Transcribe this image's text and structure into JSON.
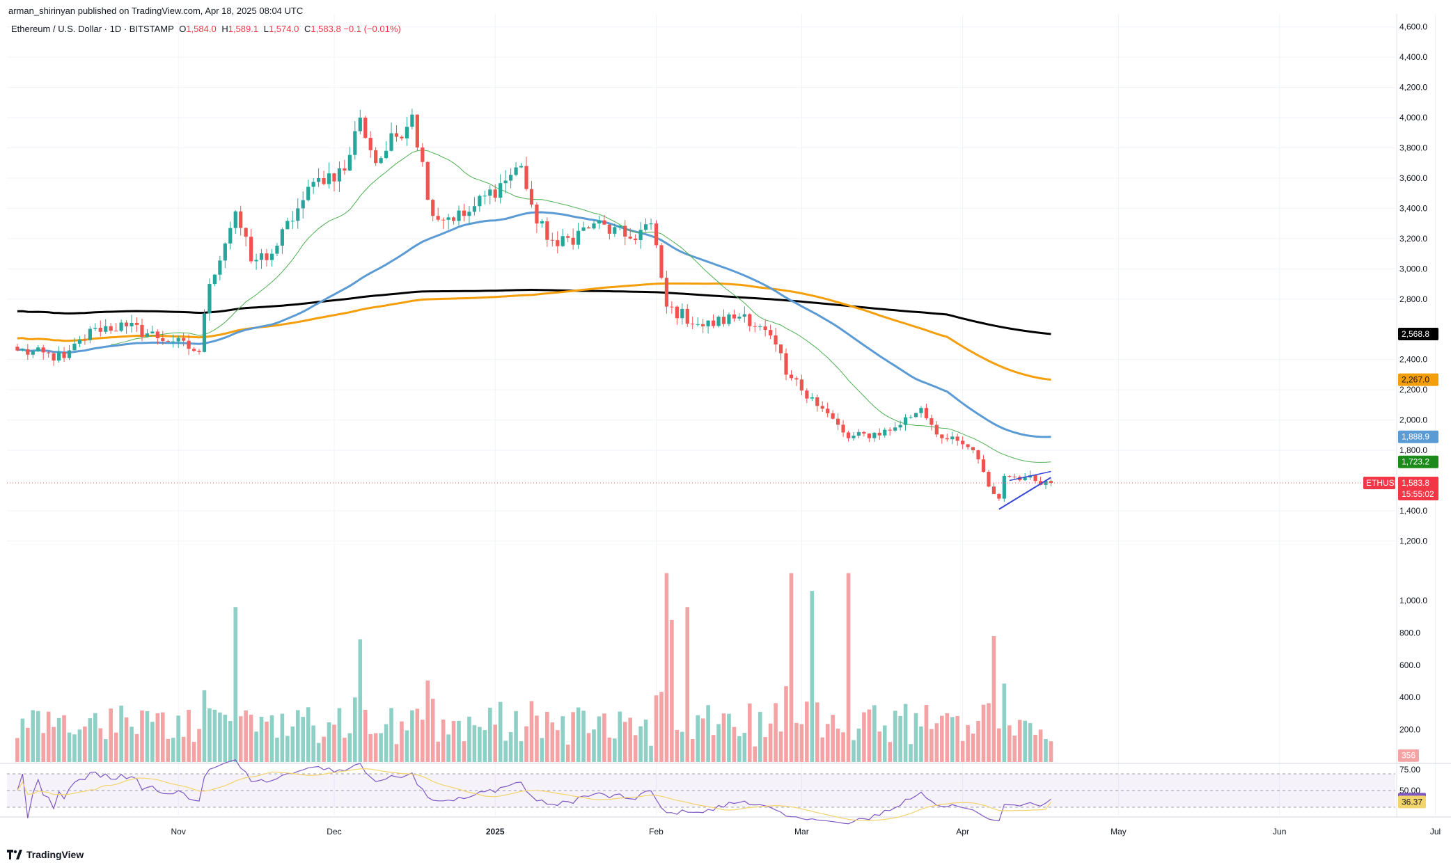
{
  "header": {
    "published": "arman_shirinyan published on TradingView.com, Apr 18, 2025 08:04 UTC",
    "symbol": "Ethereum / U.S. Dollar · 1D · BITSTAMP",
    "o_label": "O",
    "o_value": "1,584.0",
    "h_label": "H",
    "h_value": "1,589.1",
    "l_label": "L",
    "l_value": "1,574.0",
    "c_label": "C",
    "c_value": "1,583.8",
    "change": "−0.1 (−0.01%)"
  },
  "brand": {
    "name": "TradingView"
  },
  "colors": {
    "up": "#26a69a",
    "down": "#ef5350",
    "vol_up": "#8fd0c6",
    "vol_down": "#f4a3a5",
    "sma200": "#000000",
    "sma100": "#f59e0b",
    "sma50": "#5b9bd5",
    "sma20": "#4caf50",
    "rsi": "#7e57c2",
    "rsi_ma": "#f3d36b",
    "trend": "#3547d6"
  },
  "chart_data": {
    "type": "candlestick",
    "symbol": "ETHUSD",
    "timeframe": "1D",
    "y_axis_price": {
      "ticks": [
        "4,600.0",
        "4,400.0",
        "4,200.0",
        "4,000.0",
        "3,800.0",
        "3,600.0",
        "3,400.0",
        "3,200.0",
        "3,000.0",
        "2,800.0",
        "2,400.0",
        "2,200.0",
        "2,000.0",
        "1,800.0",
        "1,400.0",
        "1,200.0"
      ],
      "range": [
        1050,
        4640
      ]
    },
    "y_axis_volume": {
      "ticks": [
        "1,000.0",
        "800.0",
        "600.0",
        "400.0",
        "200.0"
      ]
    },
    "y_axis_rsi": {
      "ticks": [
        "75.00",
        "50.00"
      ],
      "range": [
        20,
        80
      ]
    },
    "x_axis": {
      "ticks": [
        "Nov",
        "Dec",
        "2025",
        "Feb",
        "Mar",
        "Apr",
        "May",
        "Jun",
        "Jul"
      ]
    },
    "price_badges": [
      {
        "label": "2,568.8",
        "value": 2568.8,
        "color": "#000000",
        "text_color": "#ffffff"
      },
      {
        "label": "2,267.0",
        "value": 2267.0,
        "color": "#f59e0b",
        "text_color": "#131722"
      },
      {
        "label": "1,888.9",
        "value": 1888.9,
        "color": "#5b9bd5",
        "text_color": "#ffffff"
      },
      {
        "label": "1,723.2",
        "value": 1723.2,
        "color": "#1b8a1b",
        "text_color": "#ffffff"
      }
    ],
    "last_price": {
      "symbol": "ETHUSD",
      "price": "1,583.8",
      "countdown": "15:55:02",
      "value": 1583.8
    },
    "volume_badge": "356",
    "rsi_badges": [
      {
        "label": "39.73",
        "value": 39.73,
        "color": "#7e57c2"
      },
      {
        "label": "36.37",
        "value": 36.37,
        "color": "#f3d36b"
      }
    ],
    "anchors": [
      {
        "date": "2024-10-01",
        "close": 2460
      },
      {
        "date": "2024-10-10",
        "close": 2410
      },
      {
        "date": "2024-10-16",
        "close": 2610
      },
      {
        "date": "2024-10-22",
        "close": 2620
      },
      {
        "date": "2024-10-31",
        "close": 2520
      },
      {
        "date": "2024-11-05",
        "close": 2450
      },
      {
        "date": "2024-11-07",
        "close": 2900
      },
      {
        "date": "2024-11-12",
        "close": 3380
      },
      {
        "date": "2024-11-15",
        "close": 3050
      },
      {
        "date": "2024-11-19",
        "close": 3100
      },
      {
        "date": "2024-11-24",
        "close": 3400
      },
      {
        "date": "2024-11-28",
        "close": 3600
      },
      {
        "date": "2024-12-03",
        "close": 3650
      },
      {
        "date": "2024-12-06",
        "close": 4000
      },
      {
        "date": "2024-12-09",
        "close": 3700
      },
      {
        "date": "2024-12-16",
        "close": 4020
      },
      {
        "date": "2024-12-20",
        "close": 3350
      },
      {
        "date": "2024-12-26",
        "close": 3350
      },
      {
        "date": "2025-01-06",
        "close": 3680
      },
      {
        "date": "2025-01-09",
        "close": 3300
      },
      {
        "date": "2025-01-13",
        "close": 3150
      },
      {
        "date": "2025-01-20",
        "close": 3300
      },
      {
        "date": "2025-01-27",
        "close": 3200
      },
      {
        "date": "2025-01-31",
        "close": 3300
      },
      {
        "date": "2025-02-03",
        "close": 2750
      },
      {
        "date": "2025-02-10",
        "close": 2620
      },
      {
        "date": "2025-02-18",
        "close": 2700
      },
      {
        "date": "2025-02-24",
        "close": 2500
      },
      {
        "date": "2025-02-26",
        "close": 2300
      },
      {
        "date": "2025-03-03",
        "close": 2150
      },
      {
        "date": "2025-03-10",
        "close": 1880
      },
      {
        "date": "2025-03-18",
        "close": 1930
      },
      {
        "date": "2025-03-24",
        "close": 2080
      },
      {
        "date": "2025-03-28",
        "close": 1880
      },
      {
        "date": "2025-04-01",
        "close": 1840
      },
      {
        "date": "2025-04-03",
        "close": 1800
      },
      {
        "date": "2025-04-06",
        "close": 1560
      },
      {
        "date": "2025-04-08",
        "close": 1480
      },
      {
        "date": "2025-04-09",
        "close": 1630
      },
      {
        "date": "2025-04-13",
        "close": 1620
      },
      {
        "date": "2025-04-18",
        "close": 1583.8
      }
    ],
    "volume_spikes": [
      {
        "date": "2024-11-12",
        "volume": 960
      },
      {
        "date": "2024-12-06",
        "volume": 760
      },
      {
        "date": "2025-02-03",
        "volume": 1170
      },
      {
        "date": "2025-02-04",
        "volume": 880
      },
      {
        "date": "2025-02-07",
        "volume": 960
      },
      {
        "date": "2025-02-27",
        "volume": 1170
      },
      {
        "date": "2025-03-03",
        "volume": 1060
      },
      {
        "date": "2025-03-10",
        "volume": 1170
      },
      {
        "date": "2025-04-07",
        "volume": 780
      }
    ],
    "series": [
      {
        "name": "SMA 200",
        "key": "sma200",
        "start_date": "2024-10-01",
        "start": 2860,
        "end_date": "2025-04-18",
        "end": 2568.8
      },
      {
        "name": "SMA 100",
        "key": "sma100",
        "start_date": "2024-10-01",
        "start": 2640,
        "end_date": "2025-04-18",
        "end": 2267.0
      },
      {
        "name": "SMA 50",
        "key": "sma50",
        "start_date": "2024-10-01",
        "start": 2490,
        "end_date": "2025-04-18",
        "end": 1888.9
      },
      {
        "name": "SMA 20",
        "key": "sma20",
        "end_date": "2025-04-18",
        "end": 1723.2
      }
    ],
    "trendline": [
      {
        "date": "2025-04-08",
        "price": 1410
      },
      {
        "date": "2025-04-18",
        "price": 1620
      }
    ],
    "rsi_bands": {
      "upper": 70,
      "lower": 30
    }
  }
}
